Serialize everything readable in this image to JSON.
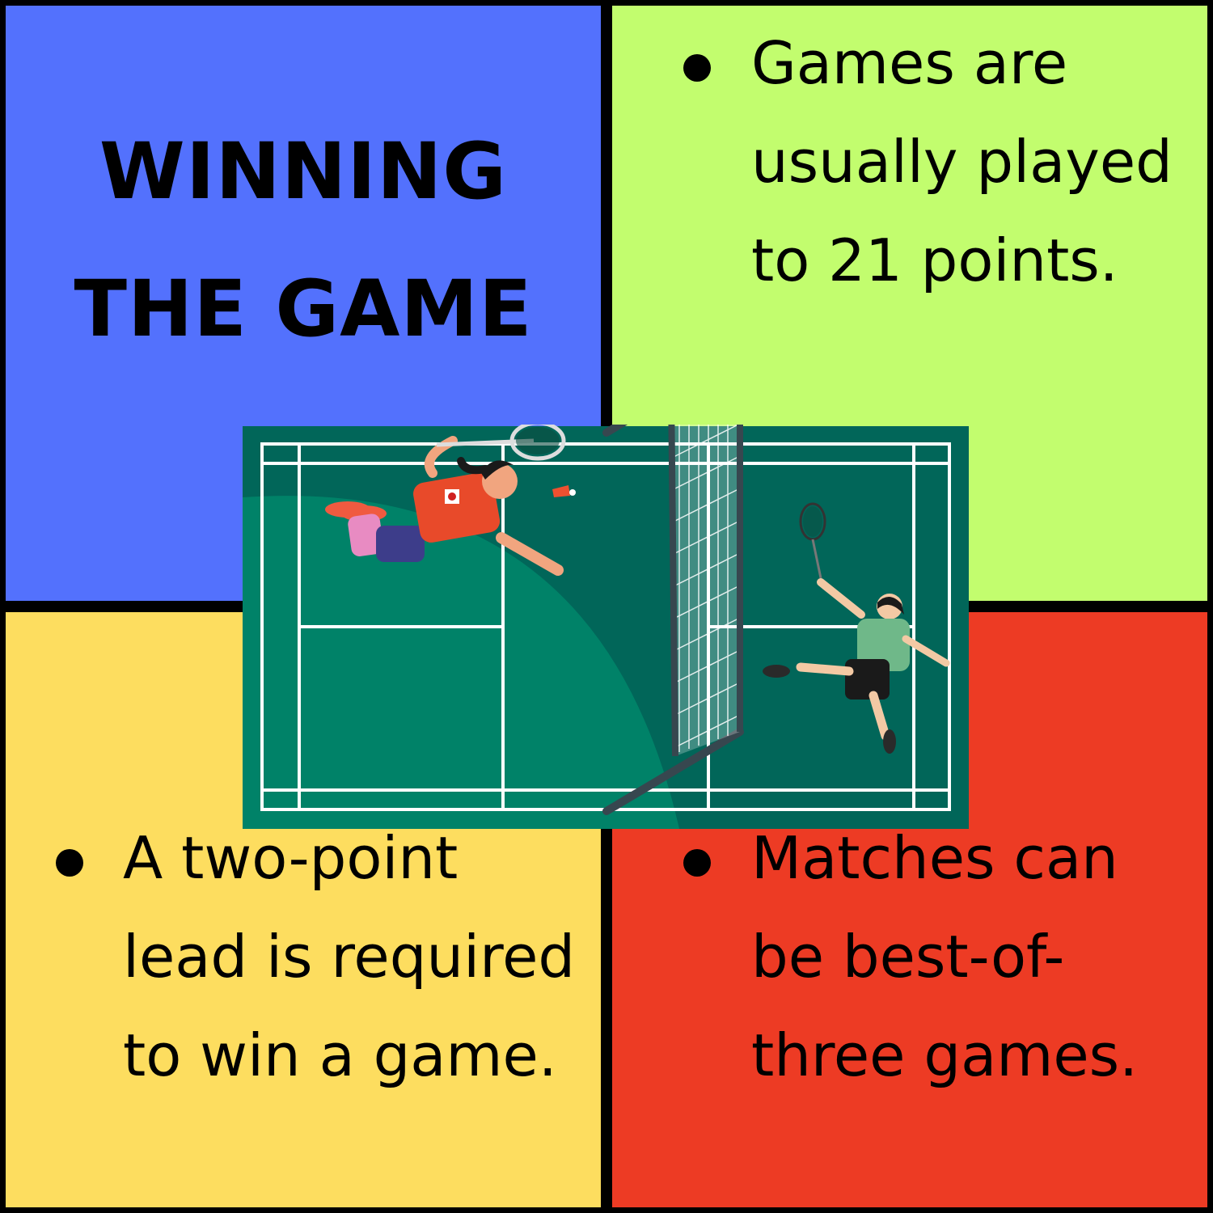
{
  "title": {
    "line1": "WINNING",
    "line2": "THE GAME"
  },
  "colors": {
    "panel_top_left": "#5371fd",
    "panel_top_right": "#c2fd6e",
    "panel_bottom_left": "#fddd5f",
    "panel_bottom_right": "#ed3b24",
    "court": "#008268",
    "court_dark": "#016659",
    "divider": "#000000"
  },
  "bullets": {
    "top_right": "Games are usually played to 21 points.",
    "bottom_left": "A two-point lead is required to win a game.",
    "bottom_right": "Matches can be best-of-three games."
  },
  "illustration": {
    "name": "badminton-court",
    "icons": [
      "court-icon",
      "net-icon",
      "player-diving-icon",
      "player-returning-icon",
      "shuttlecock-icon",
      "racket-icon"
    ]
  }
}
